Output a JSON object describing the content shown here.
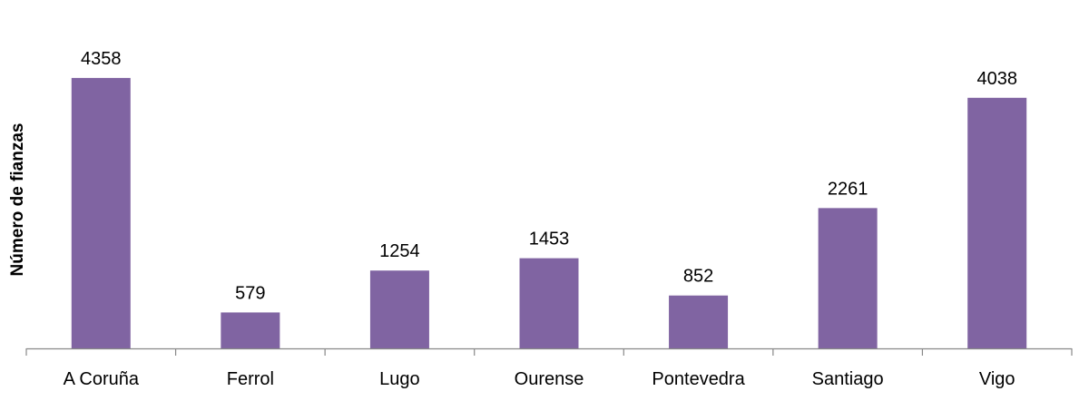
{
  "chart_data": {
    "type": "bar",
    "title": "",
    "xlabel": "",
    "ylabel": "Número de fianzas",
    "categories": [
      "A Coruña",
      "Ferrol",
      "Lugo",
      "Ourense",
      "Pontevedra",
      "Santiago",
      "Vigo"
    ],
    "values": [
      4358,
      579,
      1254,
      1453,
      852,
      2261,
      4038
    ],
    "ylim": [
      0,
      5000
    ],
    "grid": false,
    "legend": "none",
    "data_labels": true,
    "colors": {
      "bar": "#8064A2",
      "axis": "#888888"
    }
  }
}
